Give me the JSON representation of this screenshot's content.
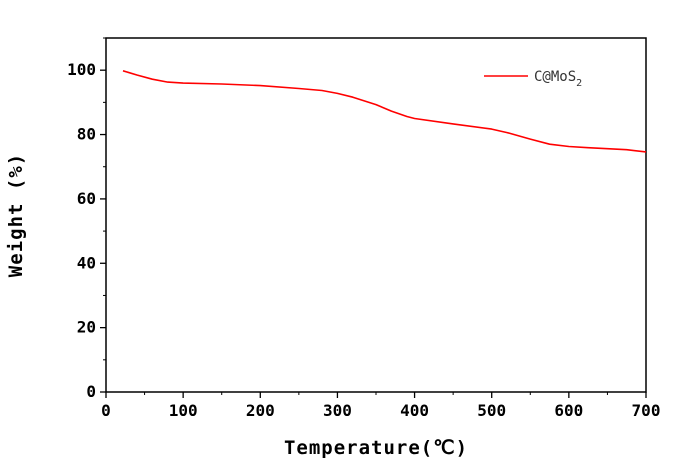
{
  "chart_data": {
    "type": "line",
    "xlabel": "Temperature(℃)",
    "ylabel": "Weight (%)",
    "xlim": [
      0,
      700
    ],
    "ylim": [
      0,
      110
    ],
    "xticks": [
      0,
      100,
      200,
      300,
      400,
      500,
      600,
      700
    ],
    "yticks": [
      0,
      20,
      40,
      60,
      80,
      100
    ],
    "grid": false,
    "legend_position": "top-right",
    "series": [
      {
        "name": "C@MoS",
        "name_subscript": "2",
        "color": "#ff0000",
        "x": [
          22,
          40,
          60,
          80,
          100,
          150,
          200,
          250,
          280,
          300,
          320,
          350,
          370,
          390,
          400,
          450,
          500,
          520,
          550,
          575,
          600,
          625,
          650,
          675,
          700
        ],
        "y": [
          99.8,
          98.5,
          97.2,
          96.3,
          96.0,
          95.7,
          95.2,
          94.3,
          93.7,
          92.8,
          91.6,
          89.3,
          87.3,
          85.6,
          85.0,
          83.3,
          81.7,
          80.6,
          78.6,
          77.0,
          76.3,
          75.9,
          75.6,
          75.3,
          74.6
        ]
      }
    ]
  }
}
